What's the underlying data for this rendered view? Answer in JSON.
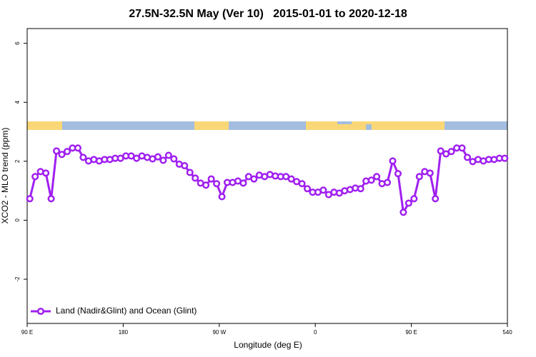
{
  "chart_data": {
    "type": "line",
    "title": "27.5N-32.5N May (Ver 10)   2015-01-01 to 2020-12-18",
    "x_label": "Longitude (deg E)",
    "y_label": "XCO2 - MLO trend (ppm)",
    "xlim": [
      90,
      540
    ],
    "xticks": [
      {
        "value": 90,
        "label": "90 E"
      },
      180,
      {
        "value": 270,
        "label": "90 W"
      },
      {
        "value": 360,
        "label": "0"
      },
      {
        "value": 450,
        "label": "90 E"
      },
      540
    ],
    "ylim": [
      -3.5,
      6.5
    ],
    "yticks": [
      -2,
      0,
      2,
      4,
      6
    ],
    "legend_position": "bottom-left",
    "x": [
      92.5,
      97.5,
      102.5,
      107.5,
      112.5,
      117.5,
      122.5,
      127.5,
      132.5,
      137.5,
      142.5,
      147.5,
      152.5,
      157.5,
      162.5,
      167.5,
      172.5,
      177.5,
      182.5,
      187.5,
      192.5,
      197.5,
      202.5,
      207.5,
      212.5,
      217.5,
      222.5,
      227.5,
      232.5,
      237.5,
      242.5,
      247.5,
      252.5,
      257.5,
      262.5,
      267.5,
      272.5,
      277.5,
      282.5,
      287.5,
      292.5,
      297.5,
      302.5,
      307.5,
      312.5,
      317.5,
      322.5,
      327.5,
      332.5,
      337.5,
      342.5,
      347.5,
      352.5,
      357.5,
      362.5,
      367.5,
      372.5,
      377.5,
      382.5,
      387.5,
      392.5,
      397.5,
      402.5,
      407.5,
      412.5,
      417.5,
      422.5,
      427.5,
      432.5,
      437.5,
      442.5,
      447.5,
      452.5,
      457.5,
      462.5,
      467.5,
      472.5,
      477.5,
      482.5,
      487.5,
      492.5,
      497.5,
      502.5,
      507.5,
      512.5,
      517.5,
      522.5,
      527.5,
      532.5,
      537.5
    ],
    "series": [
      {
        "name": "Land (Nadir&Glint) and Ocean (Glint)",
        "color": "#a020f0",
        "values": [
          0.73,
          1.48,
          1.65,
          1.6,
          0.73,
          2.35,
          2.23,
          2.33,
          2.45,
          2.45,
          2.13,
          2.01,
          2.06,
          2.01,
          2.06,
          2.06,
          2.1,
          2.1,
          2.18,
          2.18,
          2.1,
          2.18,
          2.13,
          2.08,
          2.15,
          2.03,
          2.2,
          2.08,
          1.9,
          1.85,
          1.62,
          1.43,
          1.26,
          1.19,
          1.4,
          1.24,
          0.8,
          1.28,
          1.28,
          1.33,
          1.26,
          1.48,
          1.4,
          1.53,
          1.48,
          1.55,
          1.5,
          1.48,
          1.48,
          1.4,
          1.31,
          1.24,
          1.07,
          0.95,
          0.95,
          1.02,
          0.87,
          0.95,
          0.92,
          1.0,
          1.04,
          1.09,
          1.07,
          1.33,
          1.36,
          1.48,
          1.24,
          1.28,
          2.01,
          1.58,
          0.27,
          0.58,
          0.73,
          1.48,
          1.65,
          1.6,
          0.73,
          2.35,
          2.25,
          2.33,
          2.45,
          2.45,
          2.13,
          1.99,
          2.06,
          2.01,
          2.06,
          2.06,
          2.1,
          2.1
        ]
      }
    ]
  }
}
